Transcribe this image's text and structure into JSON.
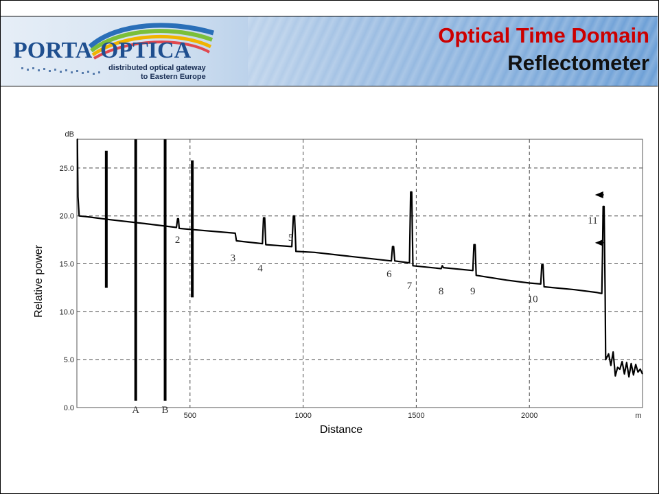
{
  "header": {
    "logo_text_left": "PORTA",
    "logo_text_right": "OPTICA",
    "logo_tagline_1": "distributed optical gateway",
    "logo_tagline_2": "to Eastern Europe",
    "title_line1": "Optical Time Domain",
    "title_line2": "Reflectometer",
    "title_color": "#cc0000"
  },
  "chart_data": {
    "type": "line",
    "title": "",
    "xlabel": "Distance",
    "ylabel": "Relative power",
    "y_unit": "dB",
    "x_unit": "m",
    "xlim": [
      0,
      2500
    ],
    "ylim": [
      0,
      28
    ],
    "x_ticks": [
      "500",
      "1000",
      "1500",
      "2000"
    ],
    "y_ticks": [
      "0.0",
      "5.0",
      "10.0",
      "15.0",
      "20.0",
      "25.0"
    ],
    "grid": true,
    "series": [
      {
        "values": [
          [
            0,
            28
          ],
          [
            2,
            28
          ],
          [
            5,
            22
          ],
          [
            10,
            20
          ],
          [
            50,
            19.9
          ],
          [
            150,
            19.6
          ],
          [
            300,
            19.2
          ],
          [
            440,
            18.8
          ],
          [
            445,
            19.7
          ],
          [
            449,
            19.7
          ],
          [
            452,
            18.7
          ],
          [
            500,
            18.6
          ],
          [
            700,
            18.2
          ],
          [
            705,
            17.4
          ],
          [
            820,
            17.1
          ],
          [
            825,
            19.8
          ],
          [
            830,
            19.8
          ],
          [
            835,
            17.0
          ],
          [
            950,
            16.8
          ],
          [
            957,
            20.0
          ],
          [
            962,
            20.0
          ],
          [
            968,
            16.3
          ],
          [
            1050,
            16.2
          ],
          [
            1200,
            15.8
          ],
          [
            1390,
            15.3
          ],
          [
            1395,
            16.8
          ],
          [
            1400,
            16.8
          ],
          [
            1405,
            15.3
          ],
          [
            1470,
            15.1
          ],
          [
            1475,
            22.5
          ],
          [
            1480,
            22.5
          ],
          [
            1485,
            14.8
          ],
          [
            1610,
            14.5
          ],
          [
            1615,
            14.8
          ],
          [
            1620,
            14.6
          ],
          [
            1750,
            14.3
          ],
          [
            1755,
            17.0
          ],
          [
            1760,
            17.0
          ],
          [
            1765,
            13.8
          ],
          [
            1900,
            13.3
          ],
          [
            2000,
            13.0
          ],
          [
            2050,
            12.9
          ],
          [
            2055,
            14.9
          ],
          [
            2060,
            14.9
          ],
          [
            2065,
            12.6
          ],
          [
            2200,
            12.3
          ],
          [
            2300,
            12.0
          ],
          [
            2320,
            11.9
          ],
          [
            2323,
            16.0
          ],
          [
            2326,
            21.0
          ],
          [
            2330,
            21.0
          ],
          [
            2335,
            11.5
          ],
          [
            2337,
            5.0
          ],
          [
            2350,
            5.6
          ],
          [
            2360,
            4.4
          ],
          [
            2370,
            5.8
          ],
          [
            2380,
            3.3
          ],
          [
            2390,
            4.2
          ],
          [
            2400,
            4.0
          ],
          [
            2410,
            4.8
          ],
          [
            2420,
            3.5
          ],
          [
            2430,
            4.7
          ],
          [
            2440,
            3.2
          ],
          [
            2450,
            4.6
          ],
          [
            2460,
            3.4
          ],
          [
            2470,
            4.5
          ],
          [
            2480,
            3.7
          ],
          [
            2490,
            4.0
          ],
          [
            2500,
            3.5
          ]
        ]
      }
    ],
    "markers": [
      {
        "label": "A",
        "x": 260
      },
      {
        "label": "B",
        "x": 390
      }
    ],
    "vertical_bars": [
      {
        "x": 130,
        "y_bottom": 12.5,
        "y_top": 26.8
      },
      {
        "x": 510,
        "y_bottom": 11.5,
        "y_top": 25.8
      }
    ],
    "events": [
      {
        "label": "2",
        "x": 445,
        "y": 17.2
      },
      {
        "label": "3",
        "x": 690,
        "y": 15.3
      },
      {
        "label": "4",
        "x": 810,
        "y": 14.2
      },
      {
        "label": "5",
        "x": 945,
        "y": 17.4
      },
      {
        "label": "6",
        "x": 1380,
        "y": 13.6
      },
      {
        "label": "7",
        "x": 1470,
        "y": 12.4
      },
      {
        "label": "8",
        "x": 1610,
        "y": 11.8
      },
      {
        "label": "9",
        "x": 1750,
        "y": 11.8
      },
      {
        "label": "10",
        "x": 2015,
        "y": 11.0
      },
      {
        "label": "11",
        "x": 2280,
        "y": 19.2
      }
    ]
  }
}
